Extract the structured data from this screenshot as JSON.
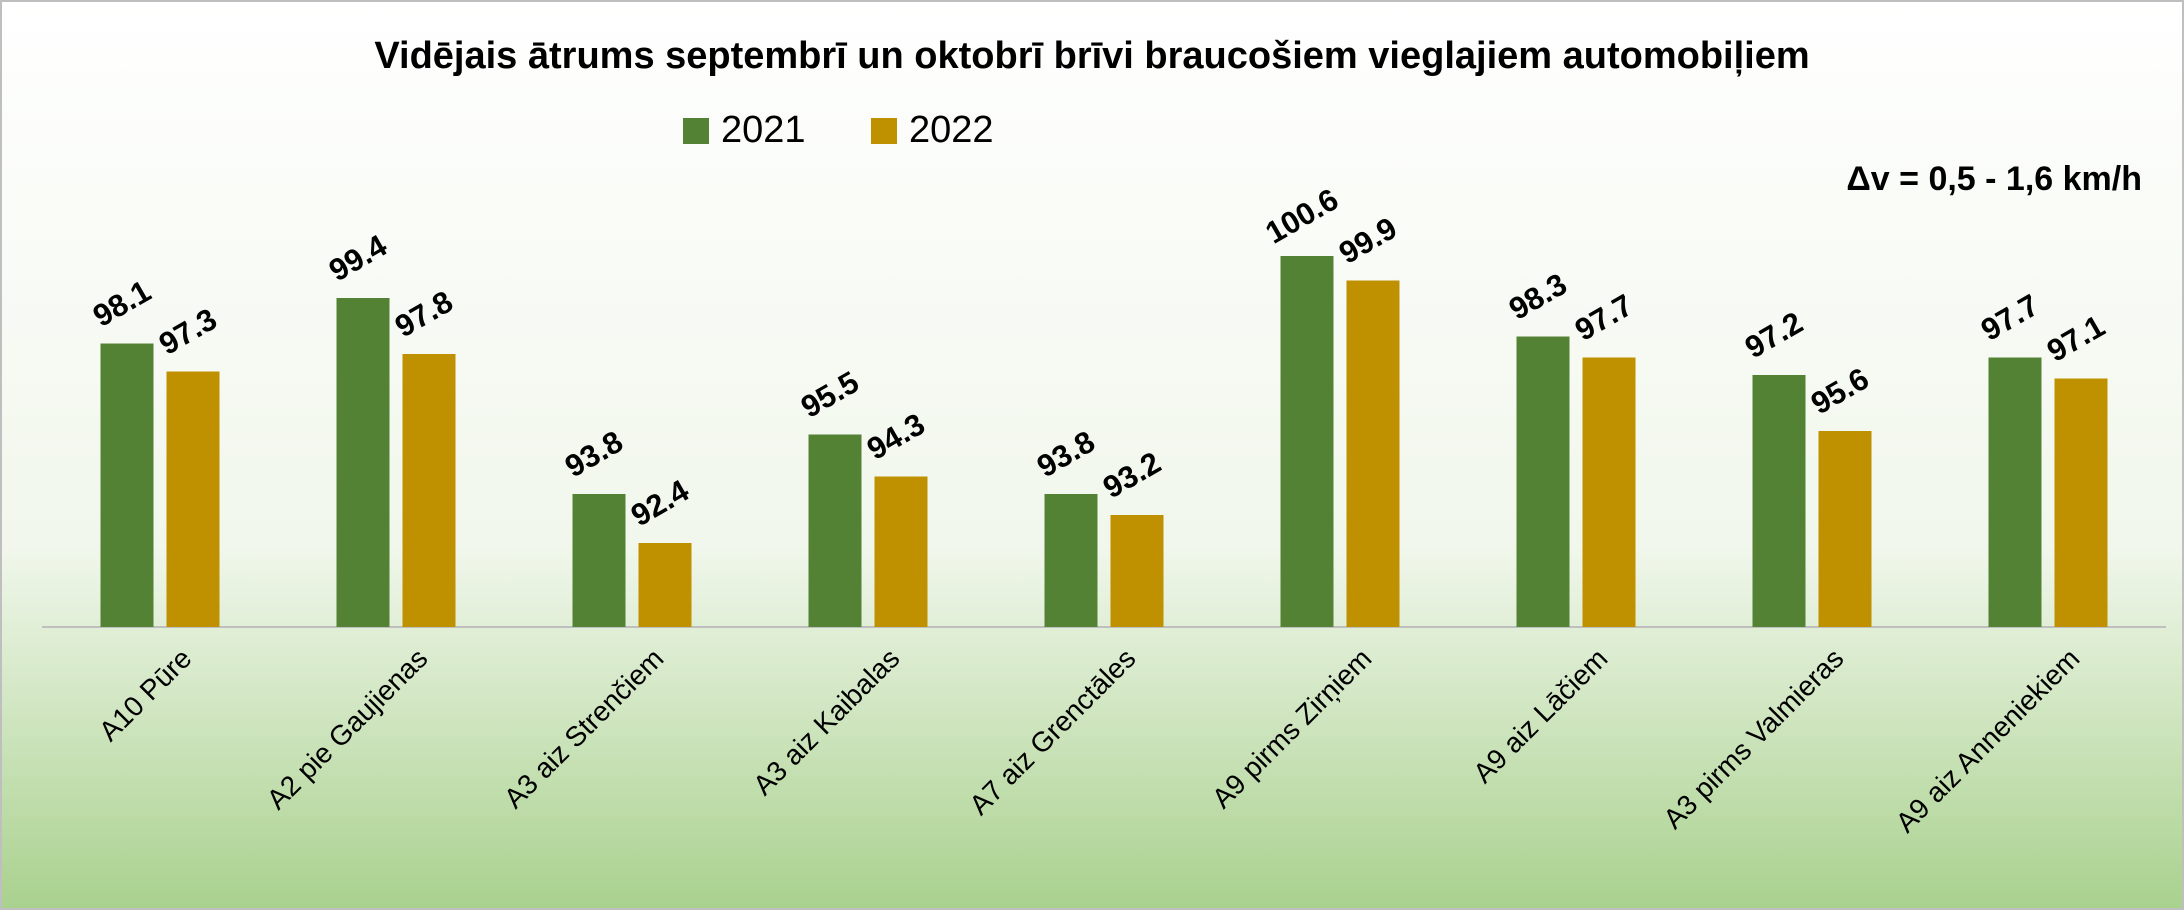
{
  "chart_data": {
    "type": "bar",
    "title": "Vidējais ātrums septembrī un oktobrī brīvi braucošiem vieglajiem automobiļiem",
    "annotation": "Δv = 0,5 - 1,6 km/h",
    "categories": [
      "A10 Pūre",
      "A2 pie Gaujienas",
      "A3 aiz Strenčiem",
      "A3 aiz Kaibalas",
      "A7 aiz Grenctāles",
      "A9 pirms Zirņiem",
      "A9 aiz Lāčiem",
      "A3 pirms Valmieras",
      "A9 aiz Anneniekiem"
    ],
    "series": [
      {
        "name": "2021",
        "color": "#548235",
        "values": [
          98.1,
          99.4,
          93.8,
          95.5,
          93.8,
          100.6,
          98.3,
          97.2,
          97.7
        ]
      },
      {
        "name": "2022",
        "color": "#bf9000",
        "values": [
          97.3,
          97.8,
          92.4,
          94.3,
          93.2,
          99.9,
          97.7,
          95.6,
          97.1
        ]
      }
    ],
    "ylim": [
      90,
      102
    ],
    "legend": "top"
  }
}
